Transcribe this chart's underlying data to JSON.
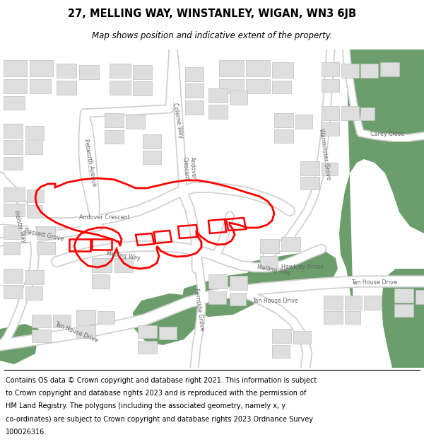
{
  "title_line1": "27, MELLING WAY, WINSTANLEY, WIGAN, WN3 6JB",
  "title_line2": "Map shows position and indicative extent of the property.",
  "footer_lines": [
    "Contains OS data © Crown copyright and database right 2021. This information is subject",
    "to Crown copyright and database rights 2023 and is reproduced with the permission of",
    "HM Land Registry. The polygons (including the associated geometry, namely x, y",
    "co-ordinates) are subject to Crown copyright and database rights 2023 Ordnance Survey",
    "100026316."
  ],
  "map_bg": "#f2f2f2",
  "road_color": "#ffffff",
  "road_outline": "#d0d0d0",
  "building_fill": "#dedede",
  "building_outline": "#c0c0c0",
  "green_fill": "#6b9e6b",
  "red_color": "#ff0000",
  "text_color": "#666666",
  "title_fontsize": 10.5,
  "subtitle_fontsize": 8.5,
  "footer_fontsize": 7.0,
  "label_fontsize": 5.8
}
